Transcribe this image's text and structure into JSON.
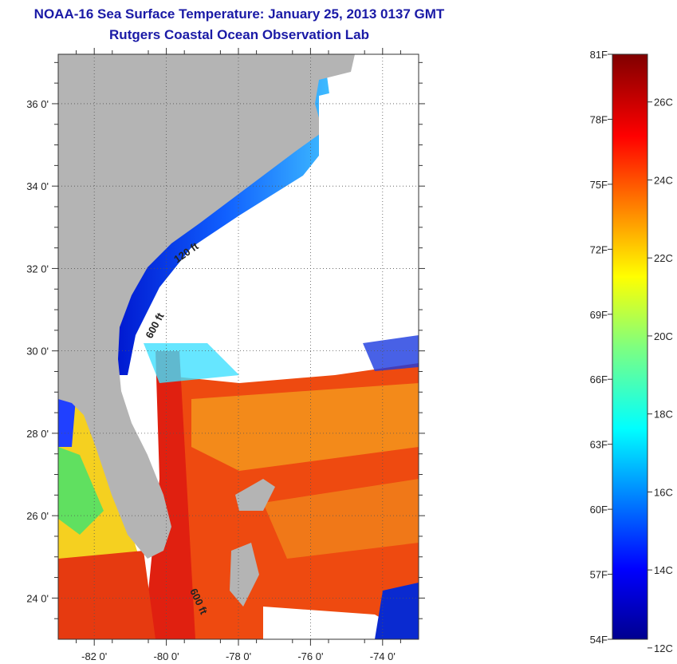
{
  "header": {
    "title": "NOAA-16 Sea Surface Temperature:  January 25, 2013 0137 GMT",
    "subtitle": "Rutgers Coastal Ocean Observation Lab"
  },
  "map": {
    "lat_ticks": [
      "36 0'",
      "34 0'",
      "32 0'",
      "30 0'",
      "28 0'",
      "26 0'",
      "24 0'"
    ],
    "lon_ticks": [
      "-82 0'",
      "-80 0'",
      "-78 0'",
      "-76 0'",
      "-74 0'"
    ],
    "lat_values": [
      36,
      34,
      32,
      30,
      28,
      26,
      24
    ],
    "lon_values": [
      -82,
      -80,
      -78,
      -76,
      -74
    ],
    "lat_range": [
      23,
      37.2
    ],
    "lon_range": [
      -83,
      -73
    ],
    "depth_labels": [
      "120 ft",
      "600 ft",
      "600 ft"
    ],
    "colors": {
      "land": "#b4b4b4",
      "cloud": "#ffffff",
      "grid": "#555555"
    }
  },
  "colorbar": {
    "fahrenheit_labels": [
      "81F",
      "78F",
      "75F",
      "72F",
      "69F",
      "66F",
      "63F",
      "60F",
      "57F",
      "54F"
    ],
    "celsius_labels": [
      "26C",
      "24C",
      "22C",
      "20C",
      "18C",
      "16C",
      "14C",
      "12C"
    ],
    "range_f": [
      54,
      81
    ],
    "colormap": "jet"
  }
}
